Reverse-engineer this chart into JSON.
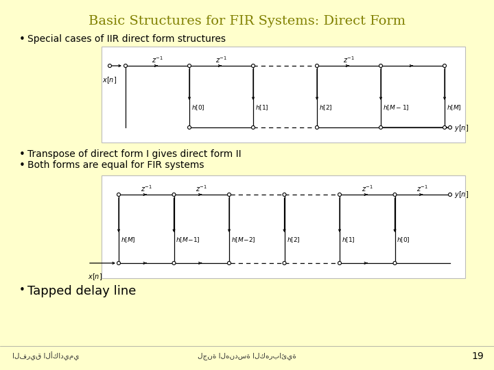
{
  "title": "Basic Structures for FIR Systems: Direct Form",
  "title_color": "#808000",
  "bg_color": "#FFFFCC",
  "diagram_bg": "#FFFFFF",
  "bullet1": "Special cases of IIR direct form structures",
  "bullet2": "Transpose of direct form I gives direct form II",
  "bullet3": "Both forms are equal for FIR systems",
  "bullet4": "Tapped delay line",
  "footer_left": "الفريق الأكاديمي",
  "footer_center": "لجنة الهندسة الكهربائية",
  "footer_page": "19",
  "tap_labels_1": [
    "$h[0]$",
    "$h[1]$",
    "$h[2]$",
    "$h[M-1]$",
    "$h[M]$"
  ],
  "tap_labels_2": [
    "$h[M]$",
    "$h[M\\!-\\!1]$",
    "$h[M\\!-\\!2]$",
    "$h[2]$",
    "$h[1]$",
    "$h[0]$"
  ],
  "z_inv": "$z^{-1}$"
}
